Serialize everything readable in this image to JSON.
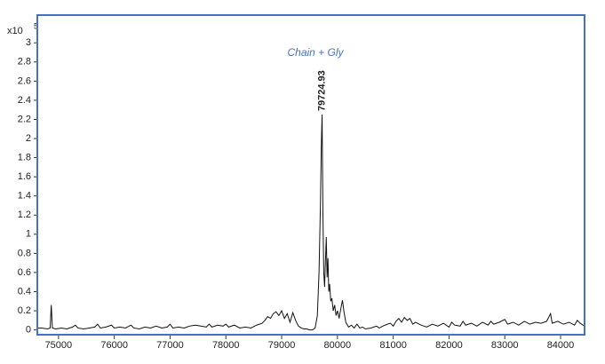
{
  "chart_data": {
    "type": "line",
    "y_multiplier": {
      "base": "x10",
      "exponent": 5
    },
    "annotations": [
      {
        "text": "Chain + Gly"
      }
    ],
    "xlim": [
      74620,
      84430
    ],
    "ylim": [
      -0.05,
      3.29
    ],
    "xticks": [
      75000,
      76000,
      77000,
      78000,
      79000,
      80000,
      81000,
      82000,
      83000,
      84000
    ],
    "yticks": [
      0,
      0.2,
      0.4,
      0.6,
      0.8,
      1,
      1.2,
      1.4,
      1.6,
      1.8,
      2,
      2.2,
      2.4,
      2.6,
      2.8,
      3
    ],
    "frame_color": "#4472c4",
    "series": [
      {
        "color": "#111111",
        "x": [
          74620,
          74700,
          74800,
          74850,
          74870,
          74890,
          74950,
          75050,
          75150,
          75250,
          75300,
          75350,
          75450,
          75550,
          75650,
          75700,
          75750,
          75850,
          75950,
          76000,
          76100,
          76200,
          76300,
          76350,
          76450,
          76550,
          76650,
          76750,
          76850,
          76950,
          77000,
          77050,
          77150,
          77250,
          77350,
          77450,
          77550,
          77650,
          77700,
          77750,
          77850,
          77950,
          78000,
          78050,
          78150,
          78250,
          78350,
          78450,
          78550,
          78650,
          78700,
          78750,
          78800,
          78850,
          78900,
          78950,
          79000,
          79050,
          79100,
          79150,
          79200,
          79250,
          79300,
          79350,
          79400,
          79450,
          79500,
          79550,
          79600,
          79640,
          79670,
          79695,
          79710,
          79724.93,
          79740,
          79755,
          79770,
          79785,
          79800,
          79815,
          79830,
          79845,
          79860,
          79880,
          79900,
          79925,
          79950,
          79975,
          80000,
          80030,
          80060,
          80090,
          80120,
          80150,
          80200,
          80250,
          80300,
          80350,
          80400,
          80450,
          80500,
          80600,
          80700,
          80750,
          80850,
          80950,
          81000,
          81050,
          81100,
          81150,
          81200,
          81250,
          81300,
          81350,
          81400,
          81500,
          81600,
          81700,
          81800,
          81900,
          82000,
          82050,
          82100,
          82200,
          82250,
          82300,
          82400,
          82500,
          82600,
          82700,
          82750,
          82800,
          82900,
          83000,
          83050,
          83150,
          83250,
          83350,
          83450,
          83550,
          83650,
          83750,
          83820,
          83850,
          83950,
          84050,
          84150,
          84250,
          84300,
          84350,
          84430
        ],
        "values": [
          0.02,
          0.02,
          0.01,
          0.02,
          0.26,
          0.02,
          0.01,
          0.02,
          0.01,
          0.03,
          0.05,
          0.02,
          0.01,
          0.02,
          0.03,
          0.06,
          0.02,
          0.03,
          0.05,
          0.02,
          0.03,
          0.02,
          0.05,
          0.02,
          0.01,
          0.03,
          0.02,
          0.04,
          0.02,
          0.03,
          0.06,
          0.02,
          0.03,
          0.02,
          0.04,
          0.05,
          0.04,
          0.03,
          0.06,
          0.03,
          0.05,
          0.04,
          0.06,
          0.03,
          0.05,
          0.02,
          0.03,
          0.02,
          0.05,
          0.07,
          0.1,
          0.14,
          0.12,
          0.17,
          0.19,
          0.15,
          0.2,
          0.12,
          0.17,
          0.08,
          0.18,
          0.1,
          0.04,
          0.02,
          0.01,
          0.01,
          0.0,
          0.0,
          0.02,
          0.15,
          0.6,
          1.3,
          1.9,
          2.25,
          1.2,
          0.6,
          0.45,
          0.72,
          0.97,
          0.55,
          0.75,
          0.4,
          0.48,
          0.3,
          0.33,
          0.2,
          0.26,
          0.15,
          0.2,
          0.12,
          0.22,
          0.31,
          0.18,
          0.08,
          0.03,
          0.05,
          0.02,
          0.06,
          0.02,
          0.03,
          0.01,
          0.02,
          0.04,
          0.02,
          0.05,
          0.07,
          0.04,
          0.09,
          0.12,
          0.08,
          0.13,
          0.1,
          0.12,
          0.06,
          0.08,
          0.05,
          0.03,
          0.06,
          0.04,
          0.07,
          0.03,
          0.08,
          0.05,
          0.04,
          0.09,
          0.05,
          0.07,
          0.04,
          0.08,
          0.05,
          0.09,
          0.06,
          0.08,
          0.11,
          0.06,
          0.08,
          0.05,
          0.09,
          0.06,
          0.08,
          0.07,
          0.09,
          0.17,
          0.07,
          0.09,
          0.06,
          0.08,
          0.05,
          0.1,
          0.07,
          0.04
        ]
      }
    ]
  }
}
